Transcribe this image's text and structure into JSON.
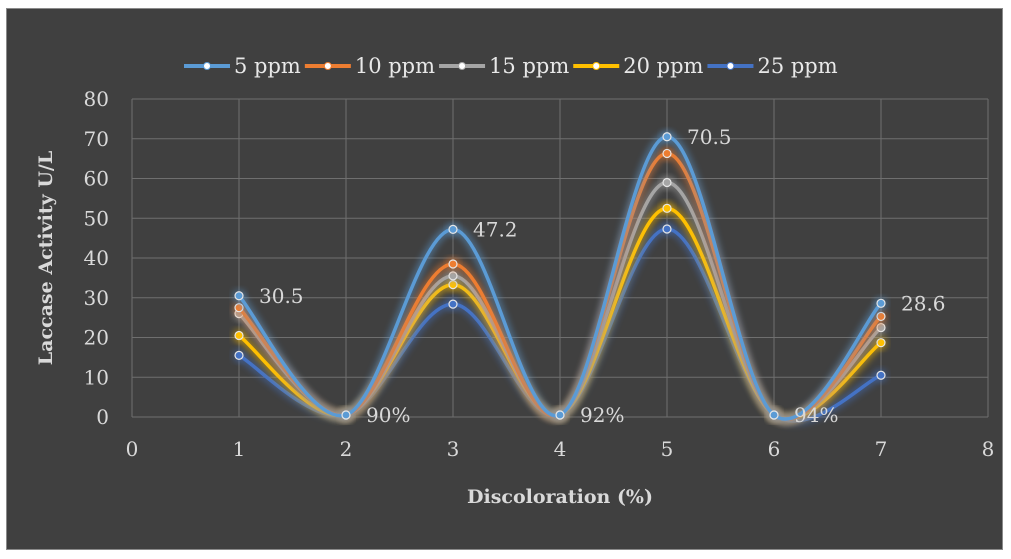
{
  "chart_data": {
    "type": "line",
    "xlabel": "Discoloration (%)",
    "ylabel": "Laccase Activity U/L",
    "xlim": [
      0,
      8
    ],
    "ylim": [
      0,
      80
    ],
    "x_ticks": [
      0,
      1,
      2,
      3,
      4,
      5,
      6,
      7,
      8
    ],
    "y_ticks": [
      0,
      10,
      20,
      30,
      40,
      50,
      60,
      70,
      80
    ],
    "grid": true,
    "smooth": true,
    "legend_position": "top",
    "x": [
      1,
      2,
      3,
      4,
      5,
      6,
      7
    ],
    "series": [
      {
        "name": "5 ppm",
        "color": "#5b9bd5",
        "values": [
          30.5,
          0.5,
          47.2,
          0.5,
          70.5,
          0.5,
          28.6
        ]
      },
      {
        "name": "10 ppm",
        "color": "#ed7d31",
        "values": [
          27.5,
          0.5,
          38.5,
          0.5,
          66.3,
          0.5,
          25.3
        ]
      },
      {
        "name": "15 ppm",
        "color": "#a5a5a5",
        "values": [
          26.0,
          0.5,
          35.5,
          0.5,
          59.0,
          0.5,
          22.5
        ]
      },
      {
        "name": "20 ppm",
        "color": "#ffc000",
        "values": [
          20.5,
          0.5,
          33.3,
          0.5,
          52.5,
          0.5,
          18.7
        ]
      },
      {
        "name": "25 ppm",
        "color": "#4472c4",
        "values": [
          15.5,
          0.5,
          28.4,
          0.5,
          47.3,
          0.5,
          10.5
        ]
      }
    ],
    "annotations": [
      {
        "x": 1,
        "y": 30.5,
        "text": "30.5"
      },
      {
        "x": 2,
        "y": 0.5,
        "text": "90%"
      },
      {
        "x": 3,
        "y": 47.2,
        "text": "47.2"
      },
      {
        "x": 4,
        "y": 0.5,
        "text": "92%"
      },
      {
        "x": 5,
        "y": 70.5,
        "text": "70.5"
      },
      {
        "x": 6,
        "y": 0.5,
        "text": "94%"
      },
      {
        "x": 7,
        "y": 28.6,
        "text": "28.6"
      }
    ],
    "colors": {
      "background": "#404040",
      "grid": "#6f6f6f",
      "text": "#d9d9d9"
    }
  }
}
